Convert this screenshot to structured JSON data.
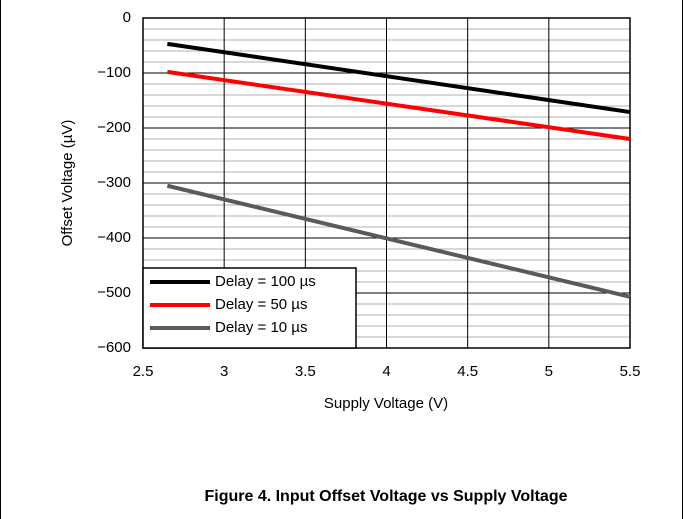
{
  "chart_data": {
    "type": "line",
    "caption": "Figure 4. Input Offset Voltage vs Supply Voltage",
    "x_label": "Supply Voltage (V)",
    "y_label": "Offset Voltage (µV)",
    "x": [
      2.65,
      5.5
    ],
    "series": [
      {
        "name": "Delay = 100 µs",
        "color": "#000000",
        "values": [
          -47,
          -171
        ]
      },
      {
        "name": "Delay = 50 µs",
        "color": "#ff0000",
        "values": [
          -98,
          -220
        ]
      },
      {
        "name": "Delay = 10 µs",
        "color": "#5a5a5a",
        "values": [
          -305,
          -507
        ]
      }
    ],
    "xlim": [
      2.5,
      5.5
    ],
    "xticks": [
      2.5,
      3,
      3.5,
      4,
      4.5,
      5,
      5.5
    ],
    "ylim": [
      -600,
      0
    ],
    "yticks": [
      0,
      {
        "value": -100,
        "label": "−100"
      },
      {
        "value": -200,
        "label": "−200"
      },
      {
        "value": -300,
        "label": "−300"
      },
      {
        "value": -400,
        "label": "−400"
      },
      {
        "value": -500,
        "label": "−500"
      },
      {
        "value": -600,
        "label": "−600"
      }
    ],
    "grid": true,
    "minor_y_grid_step": 20,
    "legend": "lower left"
  }
}
